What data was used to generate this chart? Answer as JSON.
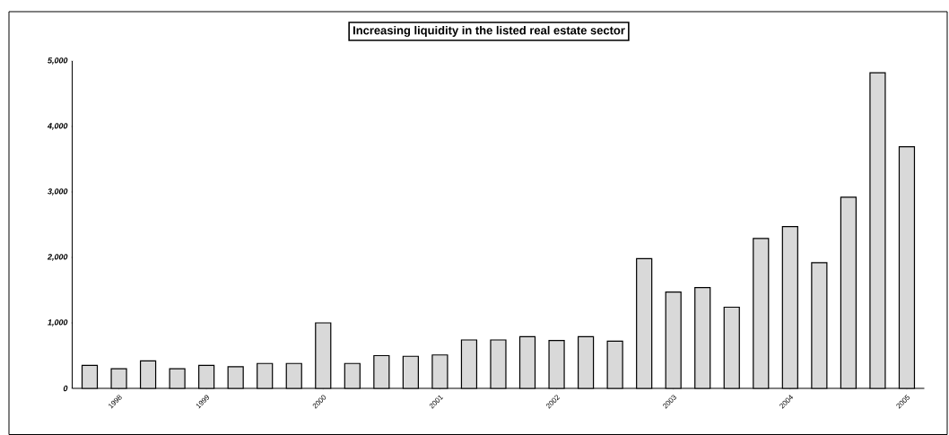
{
  "chart_data": {
    "type": "bar",
    "title": "Increasing liquidity in the listed real estate sector",
    "categories": [
      null,
      "1998",
      null,
      null,
      "1999",
      null,
      null,
      null,
      "2000",
      null,
      null,
      null,
      "2001",
      null,
      null,
      null,
      "2002",
      null,
      null,
      null,
      "2003",
      null,
      null,
      null,
      "2004",
      null,
      null,
      null,
      "2005"
    ],
    "values": [
      350,
      300,
      420,
      300,
      350,
      330,
      380,
      380,
      1000,
      380,
      500,
      490,
      510,
      740,
      740,
      790,
      730,
      790,
      720,
      1980,
      1470,
      1540,
      1240,
      2290,
      2470,
      1920,
      2920,
      4820,
      3690
    ],
    "color": "#d9d9d9",
    "ylim": [
      0,
      5000
    ],
    "yticks": [
      {
        "value": 0,
        "label": "0"
      },
      {
        "value": 1000,
        "label": "1,000"
      },
      {
        "value": 2000,
        "label": "2,000"
      },
      {
        "value": 3000,
        "label": "3,000"
      },
      {
        "value": 4000,
        "label": "4,000"
      },
      {
        "value": 5000,
        "label": "5,000"
      }
    ],
    "grid": false
  }
}
